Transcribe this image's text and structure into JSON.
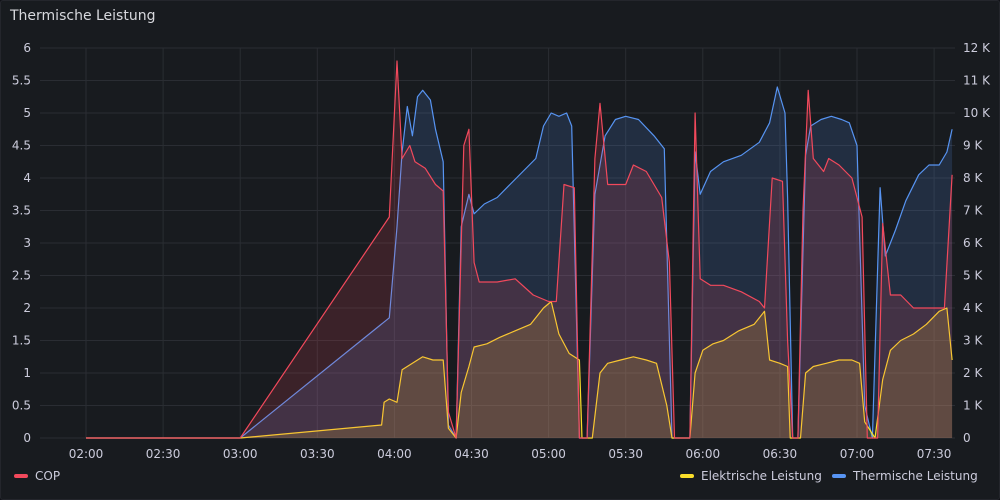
{
  "panel": {
    "title": "Thermische Leistung"
  },
  "chart_data": {
    "type": "line",
    "x_ticks": [
      "02:00",
      "02:30",
      "03:00",
      "03:30",
      "04:00",
      "04:30",
      "05:00",
      "05:30",
      "06:00",
      "06:30",
      "07:00",
      "07:30"
    ],
    "y_left_ticks": [
      "0",
      "0.5",
      "1",
      "1.5",
      "2",
      "2.5",
      "3",
      "3.5",
      "4",
      "4.5",
      "5",
      "5.5",
      "6"
    ],
    "y_right_ticks": [
      "0",
      "1 K",
      "2 K",
      "3 K",
      "4 K",
      "5 K",
      "6 K",
      "7 K",
      "8 K",
      "9 K",
      "10 K",
      "11 K",
      "12 K"
    ],
    "ylim_left": [
      0,
      6
    ],
    "ylim_right": [
      0,
      12000
    ],
    "grid": true,
    "legend_left": [
      "COP"
    ],
    "legend_right": [
      "Elektrische Leistung",
      "Thermische Leistung"
    ],
    "series": [
      {
        "name": "COP",
        "axis": "left",
        "color": "#f2495c",
        "points": [
          [
            "02:00",
            0
          ],
          [
            "03:00",
            0
          ],
          [
            "03:58",
            3.4
          ],
          [
            "04:01",
            5.8
          ],
          [
            "04:03",
            4.3
          ],
          [
            "04:06",
            4.5
          ],
          [
            "04:08",
            4.25
          ],
          [
            "04:12",
            4.15
          ],
          [
            "04:16",
            3.9
          ],
          [
            "04:19",
            3.8
          ],
          [
            "04:21",
            0.4
          ],
          [
            "04:24",
            0
          ],
          [
            "04:27",
            4.5
          ],
          [
            "04:29",
            4.75
          ],
          [
            "04:31",
            2.7
          ],
          [
            "04:33",
            2.4
          ],
          [
            "04:40",
            2.4
          ],
          [
            "04:47",
            2.45
          ],
          [
            "04:54",
            2.2
          ],
          [
            "05:00",
            2.1
          ],
          [
            "05:03",
            2.1
          ],
          [
            "05:06",
            3.9
          ],
          [
            "05:10",
            3.85
          ],
          [
            "05:12",
            0
          ],
          [
            "05:15",
            0
          ],
          [
            "05:18",
            4.3
          ],
          [
            "05:20",
            5.15
          ],
          [
            "05:23",
            3.9
          ],
          [
            "05:30",
            3.9
          ],
          [
            "05:33",
            4.2
          ],
          [
            "05:38",
            4.1
          ],
          [
            "05:44",
            3.7
          ],
          [
            "05:47",
            2.7
          ],
          [
            "05:49",
            0
          ],
          [
            "05:55",
            0
          ],
          [
            "05:57",
            5.0
          ],
          [
            "05:59",
            2.45
          ],
          [
            "06:03",
            2.35
          ],
          [
            "06:08",
            2.35
          ],
          [
            "06:15",
            2.25
          ],
          [
            "06:22",
            2.1
          ],
          [
            "06:24",
            2.0
          ],
          [
            "06:27",
            4.0
          ],
          [
            "06:31",
            3.95
          ],
          [
            "06:33",
            1.5
          ],
          [
            "06:35",
            0
          ],
          [
            "06:37",
            0
          ],
          [
            "06:39",
            3.5
          ],
          [
            "06:41",
            5.35
          ],
          [
            "06:43",
            4.3
          ],
          [
            "06:47",
            4.1
          ],
          [
            "06:49",
            4.3
          ],
          [
            "06:53",
            4.2
          ],
          [
            "06:58",
            4.0
          ],
          [
            "07:02",
            3.4
          ],
          [
            "07:04",
            0
          ],
          [
            "07:08",
            0
          ],
          [
            "07:10",
            3.3
          ],
          [
            "07:13",
            2.2
          ],
          [
            "07:17",
            2.2
          ],
          [
            "07:22",
            2.0
          ],
          [
            "07:27",
            2.0
          ],
          [
            "07:31",
            2.0
          ],
          [
            "07:34",
            2.0
          ],
          [
            "07:37",
            4.05
          ]
        ]
      },
      {
        "name": "Elektrische Leistung",
        "axis": "right",
        "color": "#fade2a",
        "points": [
          [
            "02:00",
            0
          ],
          [
            "03:00",
            0
          ],
          [
            "03:55",
            400
          ],
          [
            "03:56",
            1100
          ],
          [
            "03:58",
            1200
          ],
          [
            "04:01",
            1100
          ],
          [
            "04:03",
            2100
          ],
          [
            "04:07",
            2300
          ],
          [
            "04:11",
            2500
          ],
          [
            "04:15",
            2400
          ],
          [
            "04:19",
            2400
          ],
          [
            "04:21",
            300
          ],
          [
            "04:24",
            0
          ],
          [
            "04:26",
            1400
          ],
          [
            "04:29",
            2200
          ],
          [
            "04:31",
            2800
          ],
          [
            "04:36",
            2900
          ],
          [
            "04:41",
            3100
          ],
          [
            "04:47",
            3300
          ],
          [
            "04:53",
            3500
          ],
          [
            "04:58",
            4000
          ],
          [
            "05:01",
            4200
          ],
          [
            "05:04",
            3200
          ],
          [
            "05:08",
            2600
          ],
          [
            "05:12",
            2400
          ],
          [
            "05:13",
            0
          ],
          [
            "05:17",
            0
          ],
          [
            "05:20",
            2000
          ],
          [
            "05:23",
            2300
          ],
          [
            "05:28",
            2400
          ],
          [
            "05:33",
            2500
          ],
          [
            "05:38",
            2400
          ],
          [
            "05:42",
            2300
          ],
          [
            "05:46",
            1000
          ],
          [
            "05:48",
            0
          ],
          [
            "05:55",
            0
          ],
          [
            "05:57",
            2000
          ],
          [
            "06:00",
            2700
          ],
          [
            "06:04",
            2900
          ],
          [
            "06:08",
            3000
          ],
          [
            "06:14",
            3300
          ],
          [
            "06:20",
            3500
          ],
          [
            "06:24",
            3900
          ],
          [
            "06:26",
            2400
          ],
          [
            "06:30",
            2300
          ],
          [
            "06:33",
            2200
          ],
          [
            "06:34",
            0
          ],
          [
            "06:38",
            0
          ],
          [
            "06:40",
            2000
          ],
          [
            "06:43",
            2200
          ],
          [
            "06:48",
            2300
          ],
          [
            "06:53",
            2400
          ],
          [
            "06:58",
            2400
          ],
          [
            "07:01",
            2300
          ],
          [
            "07:03",
            500
          ],
          [
            "07:07",
            0
          ],
          [
            "07:10",
            1800
          ],
          [
            "07:13",
            2700
          ],
          [
            "07:17",
            3000
          ],
          [
            "07:22",
            3200
          ],
          [
            "07:27",
            3500
          ],
          [
            "07:32",
            3900
          ],
          [
            "07:35",
            4000
          ],
          [
            "07:37",
            2400
          ]
        ]
      },
      {
        "name": "Thermische Leistung",
        "axis": "right",
        "color": "#5794f2",
        "points": [
          [
            "02:00",
            0
          ],
          [
            "03:00",
            0
          ],
          [
            "03:58",
            3700
          ],
          [
            "04:01",
            6500
          ],
          [
            "04:03",
            8800
          ],
          [
            "04:05",
            10200
          ],
          [
            "04:07",
            9300
          ],
          [
            "04:09",
            10500
          ],
          [
            "04:11",
            10700
          ],
          [
            "04:14",
            10400
          ],
          [
            "04:16",
            9500
          ],
          [
            "04:19",
            8500
          ],
          [
            "04:21",
            400
          ],
          [
            "04:24",
            0
          ],
          [
            "04:26",
            6500
          ],
          [
            "04:29",
            7500
          ],
          [
            "04:31",
            6900
          ],
          [
            "04:35",
            7200
          ],
          [
            "04:40",
            7400
          ],
          [
            "04:45",
            7800
          ],
          [
            "04:50",
            8200
          ],
          [
            "04:55",
            8600
          ],
          [
            "04:58",
            9600
          ],
          [
            "05:01",
            10000
          ],
          [
            "05:04",
            9900
          ],
          [
            "05:07",
            10000
          ],
          [
            "05:09",
            9600
          ],
          [
            "05:12",
            0
          ],
          [
            "05:15",
            0
          ],
          [
            "05:18",
            7500
          ],
          [
            "05:22",
            9300
          ],
          [
            "05:26",
            9800
          ],
          [
            "05:30",
            9900
          ],
          [
            "05:35",
            9800
          ],
          [
            "05:41",
            9300
          ],
          [
            "05:45",
            8900
          ],
          [
            "05:48",
            0
          ],
          [
            "05:55",
            0
          ],
          [
            "05:57",
            8800
          ],
          [
            "05:59",
            7500
          ],
          [
            "06:03",
            8200
          ],
          [
            "06:08",
            8500
          ],
          [
            "06:15",
            8700
          ],
          [
            "06:22",
            9100
          ],
          [
            "06:26",
            9700
          ],
          [
            "06:29",
            10800
          ],
          [
            "06:32",
            10000
          ],
          [
            "06:33",
            7400
          ],
          [
            "06:35",
            0
          ],
          [
            "06:37",
            0
          ],
          [
            "06:40",
            8700
          ],
          [
            "06:42",
            9600
          ],
          [
            "06:46",
            9800
          ],
          [
            "06:50",
            9900
          ],
          [
            "06:54",
            9800
          ],
          [
            "06:57",
            9700
          ],
          [
            "07:00",
            9000
          ],
          [
            "07:03",
            1000
          ],
          [
            "07:06",
            0
          ],
          [
            "07:09",
            7700
          ],
          [
            "07:11",
            5600
          ],
          [
            "07:15",
            6400
          ],
          [
            "07:19",
            7300
          ],
          [
            "07:24",
            8100
          ],
          [
            "07:28",
            8400
          ],
          [
            "07:32",
            8400
          ],
          [
            "07:35",
            8800
          ],
          [
            "07:37",
            9500
          ]
        ]
      }
    ]
  }
}
